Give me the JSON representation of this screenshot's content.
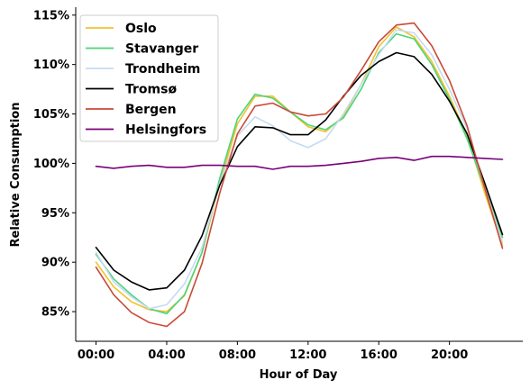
{
  "chart_data": {
    "type": "line",
    "xlabel": "Hour of Day",
    "ylabel": "Relative Consumption",
    "x": [
      0,
      1,
      2,
      3,
      4,
      5,
      6,
      7,
      8,
      9,
      10,
      11,
      12,
      13,
      14,
      15,
      16,
      17,
      18,
      19,
      20,
      21,
      22,
      23
    ],
    "xticks": [
      0,
      4,
      8,
      12,
      16,
      20
    ],
    "xtick_labels": [
      "00:00",
      "04:00",
      "08:00",
      "12:00",
      "16:00",
      "20:00"
    ],
    "xlim": [
      -1.15,
      24.15
    ],
    "yticks": [
      85,
      90,
      95,
      100,
      105,
      110,
      115
    ],
    "ytick_labels": [
      "85%",
      "90%",
      "95%",
      "100%",
      "105%",
      "110%",
      "115%"
    ],
    "ylim": [
      82.0,
      115.8
    ],
    "grid": false,
    "legend_position": "top-left",
    "series": [
      {
        "name": "Oslo",
        "color": "#f2c12e",
        "values": [
          90.0,
          87.5,
          86.0,
          85.2,
          85.0,
          86.6,
          91.0,
          98.0,
          104.0,
          106.8,
          106.8,
          105.2,
          103.7,
          103.2,
          104.8,
          108.0,
          111.8,
          113.8,
          112.8,
          110.3,
          106.8,
          102.8,
          97.0,
          91.7
        ]
      },
      {
        "name": "Stavanger",
        "color": "#4cd57a",
        "values": [
          90.8,
          88.3,
          86.7,
          85.3,
          84.8,
          86.7,
          91.0,
          98.5,
          104.5,
          107.0,
          106.6,
          105.2,
          103.9,
          103.4,
          104.6,
          107.5,
          111.2,
          113.1,
          112.6,
          110.0,
          106.5,
          102.5,
          97.5,
          92.5
        ]
      },
      {
        "name": "Trondheim",
        "color": "#c6dbf0",
        "values": [
          91.0,
          88.0,
          86.5,
          85.3,
          85.7,
          87.8,
          91.5,
          98.0,
          102.8,
          104.7,
          103.8,
          102.3,
          101.6,
          102.5,
          105.0,
          108.0,
          111.0,
          113.5,
          113.2,
          111.0,
          107.5,
          103.5,
          97.5,
          92.0
        ]
      },
      {
        "name": "Tromsø",
        "color": "#000000",
        "values": [
          91.5,
          89.2,
          88.0,
          87.2,
          87.4,
          89.2,
          92.7,
          97.8,
          101.7,
          103.7,
          103.6,
          102.9,
          102.9,
          104.4,
          106.8,
          108.9,
          110.3,
          111.2,
          110.8,
          109.0,
          106.3,
          103.0,
          98.0,
          92.8
        ]
      },
      {
        "name": "Bergen",
        "color": "#c94a37",
        "values": [
          89.5,
          86.7,
          84.9,
          83.9,
          83.5,
          85.0,
          89.9,
          97.0,
          103.0,
          105.8,
          106.1,
          105.2,
          104.8,
          105.0,
          106.7,
          109.4,
          112.3,
          114.0,
          114.2,
          111.9,
          108.4,
          103.8,
          97.5,
          91.4
        ]
      },
      {
        "name": "Helsingfors",
        "color": "#7a0078",
        "values": [
          99.7,
          99.5,
          99.7,
          99.8,
          99.6,
          99.6,
          99.8,
          99.8,
          99.7,
          99.7,
          99.4,
          99.7,
          99.7,
          99.8,
          100.0,
          100.2,
          100.5,
          100.6,
          100.3,
          100.7,
          100.7,
          100.6,
          100.5,
          100.4
        ]
      }
    ]
  }
}
